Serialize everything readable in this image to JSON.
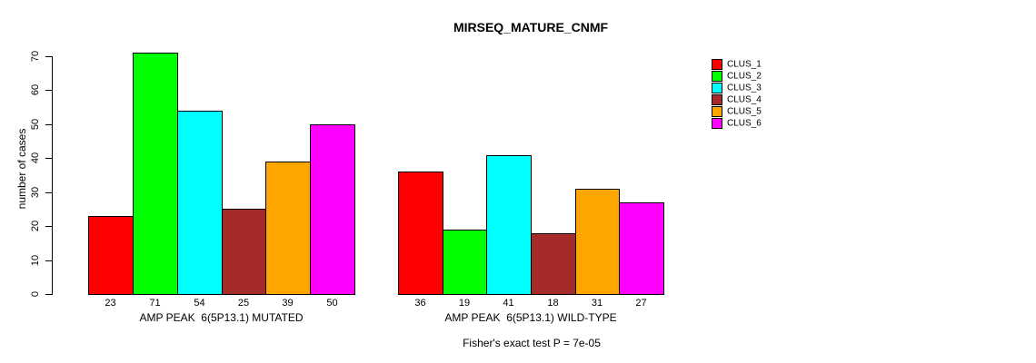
{
  "chart_data": {
    "type": "bar",
    "title": "MIRSEQ_MATURE_CNMF",
    "ylabel": "number of cases",
    "xlabel": "",
    "ylim": [
      0,
      70
    ],
    "yticks": [
      0,
      10,
      20,
      30,
      40,
      50,
      60,
      70
    ],
    "grid": false,
    "legend_position": "right",
    "categories": [
      "AMP PEAK  6(5P13.1) MUTATED",
      "AMP PEAK  6(5P13.1) WILD-TYPE"
    ],
    "series": [
      {
        "name": "CLUS_1",
        "color": "#ff0000",
        "values": [
          23,
          36
        ]
      },
      {
        "name": "CLUS_2",
        "color": "#00ff00",
        "values": [
          71,
          19
        ]
      },
      {
        "name": "CLUS_3",
        "color": "#00ffff",
        "values": [
          54,
          41
        ]
      },
      {
        "name": "CLUS_4",
        "color": "#a52a2a",
        "values": [
          25,
          18
        ]
      },
      {
        "name": "CLUS_5",
        "color": "#ffa500",
        "values": [
          39,
          31
        ]
      },
      {
        "name": "CLUS_6",
        "color": "#ff00ff",
        "values": [
          50,
          27
        ]
      }
    ],
    "bar_value_labels": [
      [
        23,
        71,
        54,
        25,
        39,
        50
      ],
      [
        36,
        19,
        41,
        18,
        31,
        27
      ]
    ],
    "annotation": "Fisher's exact test P = 7e-05"
  }
}
